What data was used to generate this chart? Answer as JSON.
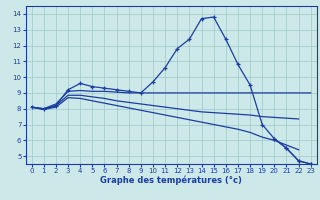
{
  "xlabel": "Graphe des températures (°c)",
  "x": [
    0,
    1,
    2,
    3,
    4,
    5,
    6,
    7,
    8,
    9,
    10,
    11,
    12,
    13,
    14,
    15,
    16,
    17,
    18,
    19,
    20,
    21,
    22,
    23
  ],
  "main_y": [
    8.1,
    8.0,
    8.2,
    9.2,
    9.6,
    9.4,
    9.3,
    9.2,
    9.1,
    9.0,
    9.7,
    10.6,
    11.8,
    12.4,
    13.7,
    13.8,
    12.4,
    10.8,
    9.5,
    7.0,
    6.1,
    5.5,
    4.7,
    4.5
  ],
  "flat_y": [
    8.1,
    8.0,
    8.3,
    9.1,
    9.15,
    9.1,
    9.1,
    9.05,
    9.0,
    9.0,
    9.0,
    9.0,
    9.0,
    9.0,
    9.0,
    9.0,
    9.0,
    9.0,
    9.0,
    9.0,
    9.0,
    9.0,
    9.0,
    9.0
  ],
  "desc1_y": [
    8.1,
    7.95,
    8.2,
    8.85,
    8.85,
    8.75,
    8.65,
    8.5,
    8.4,
    8.3,
    8.2,
    8.1,
    8.0,
    7.9,
    7.8,
    7.75,
    7.7,
    7.65,
    7.6,
    7.5,
    7.45,
    7.4,
    7.35,
    null
  ],
  "desc2_x": [
    0,
    1,
    2,
    3,
    4,
    5,
    6,
    7,
    8,
    9,
    10,
    11,
    12,
    13,
    14,
    15,
    16,
    17,
    18,
    19,
    20,
    21,
    22,
    23
  ],
  "desc2_y": [
    8.1,
    7.95,
    8.1,
    8.7,
    8.65,
    8.5,
    8.35,
    8.2,
    8.05,
    7.9,
    7.75,
    7.6,
    7.45,
    7.3,
    7.15,
    7.0,
    6.85,
    6.7,
    6.5,
    6.2,
    6.0,
    5.7,
    5.4,
    null
  ],
  "ylim": [
    4.5,
    14.5
  ],
  "yticks": [
    5,
    6,
    7,
    8,
    9,
    10,
    11,
    12,
    13,
    14
  ],
  "xticks": [
    0,
    1,
    2,
    3,
    4,
    5,
    6,
    7,
    8,
    9,
    10,
    11,
    12,
    13,
    14,
    15,
    16,
    17,
    18,
    19,
    20,
    21,
    22,
    23
  ],
  "line_color": "#1c3ea0",
  "bg_color": "#cce8e8",
  "grid_color": "#a0c8c8"
}
